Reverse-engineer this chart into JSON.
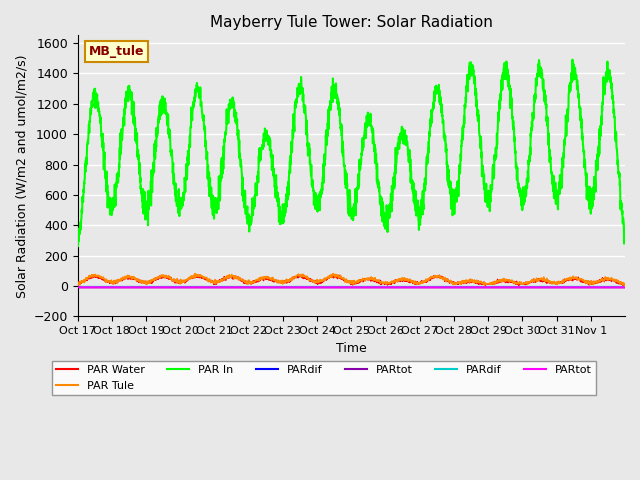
{
  "title": "Mayberry Tule Tower: Solar Radiation",
  "ylabel": "Solar Radiation (W/m2 and umol/m2/s)",
  "xlabel": "Time",
  "ylim": [
    -200,
    1650
  ],
  "yticks": [
    -200,
    0,
    200,
    400,
    600,
    800,
    1000,
    1200,
    1400,
    1600
  ],
  "background_color": "#e8e8e8",
  "plot_bg_color": "#e8e8e8",
  "grid_color": "#ffffff",
  "n_days": 16,
  "x_labels": [
    "Oct 17",
    "Oct 18",
    "Oct 19",
    "Oct 20",
    "Oct 21",
    "Oct 22",
    "Oct 23",
    "Oct 24",
    "Oct 25",
    "Oct 26",
    "Oct 27",
    "Oct 28",
    "Oct 29",
    "Oct 30",
    "Oct 31",
    "Nov 1"
  ],
  "par_in_peaks": [
    1250,
    1275,
    1200,
    1300,
    1210,
    1000,
    1300,
    1290,
    1090,
    1020,
    1300,
    1430,
    1405,
    1415,
    1410,
    1390
  ],
  "par_water_peaks": [
    65,
    55,
    60,
    65,
    60,
    50,
    65,
    65,
    45,
    40,
    60,
    30,
    35,
    40,
    50,
    45
  ],
  "par_tule_peaks": [
    70,
    60,
    65,
    70,
    65,
    55,
    70,
    70,
    50,
    45,
    65,
    35,
    40,
    45,
    55,
    50
  ],
  "series_colors": {
    "PAR Water": "#ff0000",
    "PAR Tule": "#ff8800",
    "PAR In": "#00ff00",
    "PARdif_blue": "#0000ff",
    "PARtot_purple": "#8800aa",
    "PARdif_cyan": "#00cccc",
    "PARtot_magenta": "#ff00ff"
  },
  "legend_label": "MB_tule",
  "legend_bg": "#ffffcc",
  "legend_border": "#cc8800"
}
